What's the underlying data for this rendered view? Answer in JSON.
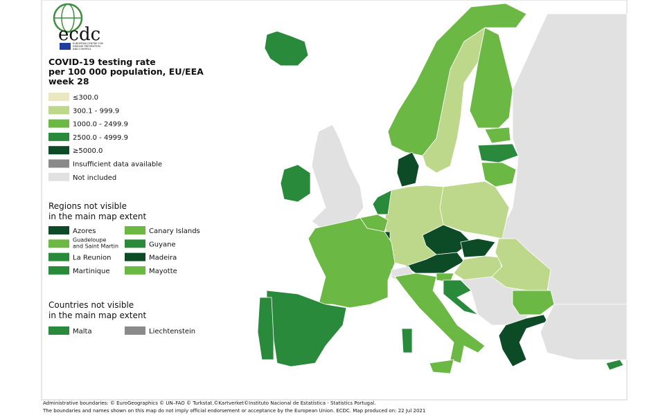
{
  "logo": {
    "name": "ecdc",
    "subtitle": [
      "EUROPEAN CENTRE FOR",
      "DISEASE PREVENTION",
      "AND CONTROL"
    ]
  },
  "legend": {
    "title": [
      "COVID-19 testing rate",
      "per 100 000 population, EU/EEA",
      "week 28"
    ],
    "items": [
      {
        "label": "≤300.0",
        "color": "#e9e8c1"
      },
      {
        "label": "300.1 - 999.9",
        "color": "#bdd88b"
      },
      {
        "label": "1000.0 - 2499.9",
        "color": "#6cb845"
      },
      {
        "label": "2500.0 - 4999.9",
        "color": "#2a8a3c"
      },
      {
        "label": "≥5000.0",
        "color": "#0d4a26"
      },
      {
        "label": "Insufficient data available",
        "color": "#8a8a8a"
      },
      {
        "label": "Not included",
        "color": "#e1e1e1"
      }
    ]
  },
  "regions": {
    "title": [
      "Regions not visible",
      "in the main map extent"
    ],
    "items": [
      {
        "label": "Azores",
        "color": "#0d4a26"
      },
      {
        "label": "Canary Islands",
        "color": "#6cb845"
      },
      {
        "label": [
          "Guadeloupe",
          "and Saint Martin"
        ],
        "color": "#6cb845"
      },
      {
        "label": "Guyane",
        "color": "#2a8a3c"
      },
      {
        "label": "La Reunion",
        "color": "#2a8a3c"
      },
      {
        "label": "Madeira",
        "color": "#0d4a26"
      },
      {
        "label": "Martinique",
        "color": "#2a8a3c"
      },
      {
        "label": "Mayotte",
        "color": "#6cb845"
      }
    ]
  },
  "countries": {
    "title": [
      "Countries not visible",
      "in the main map extent"
    ],
    "items": [
      {
        "label": "Malta",
        "color": "#2a8a3c"
      },
      {
        "label": "Liechtenstein",
        "color": "#8a8a8a"
      }
    ]
  },
  "footer": [
    "Administrative boundaries: © EuroGeographics © UN–FAO © Turkstat.©Kartverket©Instituto Nacional de Estatística - Statistics Portugal.",
    "The boundaries and names shown on this map do not imply official endorsement or acceptance by the European Union. ECDC. Map produced on: 22 Jul 2021"
  ]
}
